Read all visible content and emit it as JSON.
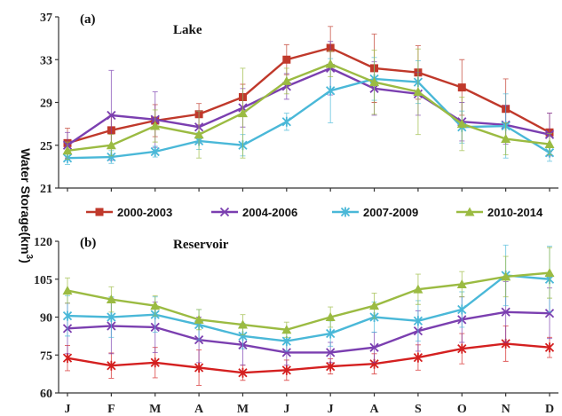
{
  "ylabel_text": "Water Storage(km",
  "ylabel_sup": "3",
  "ylabel_close": ")",
  "legend": [
    {
      "name": "2000-2003",
      "color": "#c0392b",
      "marker": "square"
    },
    {
      "name": "2004-2006",
      "color": "#7b3fb0",
      "marker": "x"
    },
    {
      "name": "2007-2009",
      "color": "#4ab8d8",
      "marker": "star"
    },
    {
      "name": "2010-2014",
      "color": "#9bbb42",
      "marker": "triangle"
    }
  ],
  "chart_data": [
    {
      "type": "line",
      "panel": "(a)",
      "title": "Lake",
      "categories": [
        "J",
        "F",
        "M",
        "A",
        "M",
        "J",
        "J",
        "A",
        "S",
        "O",
        "N",
        "D"
      ],
      "ylim": [
        21,
        37
      ],
      "yticks": [
        21,
        25,
        29,
        33,
        37
      ],
      "series": [
        {
          "name": "2000-2003",
          "color": "#c0392b",
          "marker": "square",
          "values": [
            25.2,
            26.4,
            27.3,
            27.9,
            29.5,
            33.0,
            34.1,
            32.2,
            31.8,
            30.4,
            28.4,
            26.2
          ],
          "errors": [
            1.4,
            1.5,
            1.5,
            1.0,
            1.2,
            1.4,
            2.0,
            3.2,
            2.5,
            2.6,
            2.8,
            1.8
          ]
        },
        {
          "name": "2004-2006",
          "color": "#7b3fb0",
          "marker": "x",
          "values": [
            25.0,
            27.8,
            27.4,
            26.7,
            28.5,
            30.5,
            32.2,
            30.3,
            29.8,
            27.2,
            26.9,
            26.0
          ],
          "errors": [
            1.2,
            4.2,
            2.6,
            1.5,
            1.8,
            1.2,
            2.5,
            2.5,
            2.0,
            1.8,
            1.8,
            2.0
          ]
        },
        {
          "name": "2007-2009",
          "color": "#4ab8d8",
          "marker": "star",
          "values": [
            23.8,
            23.9,
            24.4,
            25.4,
            25.0,
            27.2,
            30.1,
            31.2,
            30.9,
            26.7,
            26.8,
            24.3
          ],
          "errors": [
            0.6,
            0.6,
            0.5,
            0.8,
            1.0,
            0.8,
            3.0,
            2.0,
            2.0,
            1.5,
            3.0,
            0.8
          ]
        },
        {
          "name": "2010-2014",
          "color": "#9bbb42",
          "marker": "triangle",
          "values": [
            24.5,
            25.0,
            26.8,
            26.0,
            28.0,
            31.0,
            32.6,
            30.9,
            30.0,
            27.0,
            25.6,
            25.1
          ],
          "errors": [
            0.8,
            1.0,
            1.5,
            2.2,
            4.2,
            1.2,
            1.2,
            3.0,
            4.0,
            2.5,
            1.5,
            1.0
          ]
        }
      ]
    },
    {
      "type": "line",
      "panel": "(b)",
      "title": "Reservoir",
      "categories": [
        "J",
        "F",
        "M",
        "A",
        "M",
        "J",
        "J",
        "A",
        "S",
        "O",
        "N",
        "D"
      ],
      "ylim": [
        60,
        120
      ],
      "yticks": [
        60,
        75,
        90,
        105,
        120
      ],
      "series": [
        {
          "name": "2000-2003",
          "color": "#d42020",
          "marker": "star",
          "values": [
            73.8,
            70.8,
            72.0,
            70.0,
            68.0,
            69.0,
            70.5,
            71.5,
            74.0,
            77.5,
            79.5,
            78.0
          ],
          "errors": [
            5,
            5,
            6,
            7,
            3,
            4,
            3,
            4,
            5,
            6,
            7,
            4
          ]
        },
        {
          "name": "2004-2006",
          "color": "#7b3fb0",
          "marker": "x",
          "values": [
            85.5,
            86.5,
            86.0,
            81.0,
            79.0,
            76.0,
            76.0,
            78.0,
            84.5,
            89.0,
            92.0,
            91.5
          ],
          "errors": [
            10,
            11,
            10,
            9,
            8,
            5,
            4,
            6,
            8,
            9,
            12,
            10
          ]
        },
        {
          "name": "2007-2009",
          "color": "#4ab8d8",
          "marker": "star",
          "values": [
            90.5,
            90.0,
            91.0,
            87.0,
            82.5,
            80.5,
            83.5,
            90.0,
            88.5,
            93.0,
            106.5,
            105.0
          ],
          "errors": [
            8,
            8,
            7,
            6,
            5,
            4,
            5,
            6,
            8,
            7,
            12,
            13
          ]
        },
        {
          "name": "2010-2014",
          "color": "#9bbb42",
          "marker": "triangle",
          "values": [
            100.5,
            97.0,
            94.5,
            89.0,
            87.0,
            85.0,
            90.0,
            94.5,
            101.0,
            103.0,
            106.0,
            107.5
          ],
          "errors": [
            5,
            5,
            4,
            4,
            4,
            3,
            4,
            5,
            6,
            5,
            8,
            10
          ]
        }
      ]
    }
  ]
}
